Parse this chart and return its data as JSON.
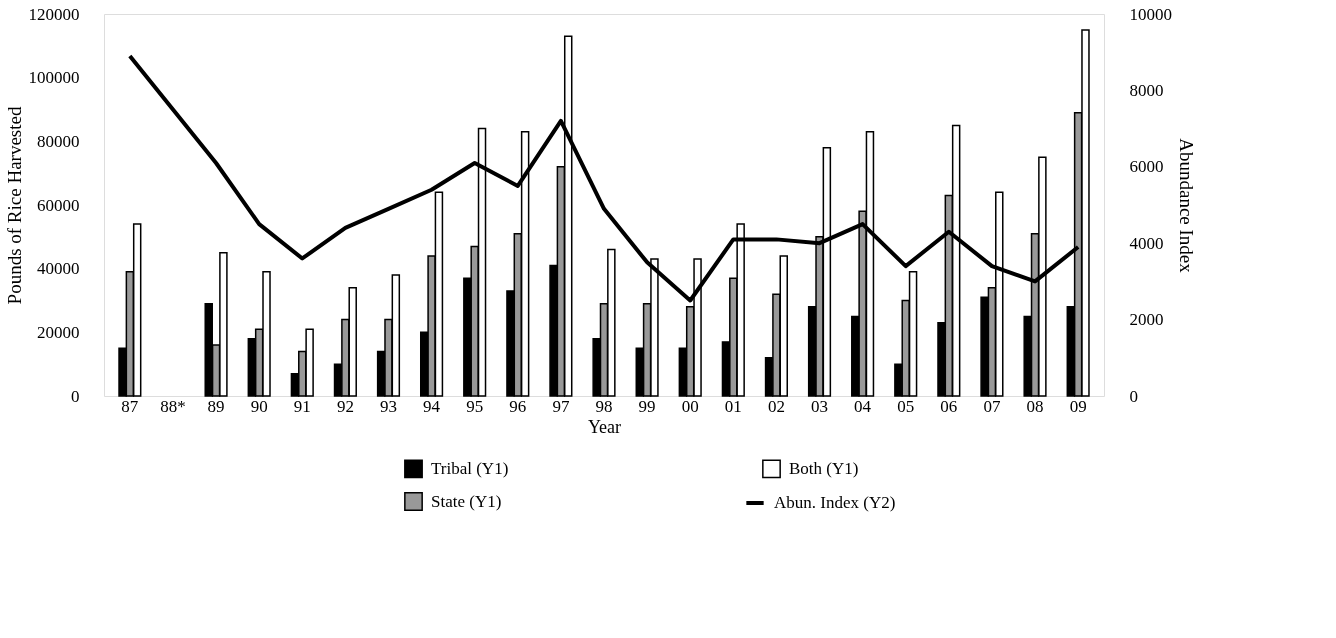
{
  "chart_data": {
    "type": "bar",
    "xlabel": "Year",
    "ylabel": "Pounds of Rice Harvested",
    "y2label": "Abundance Index",
    "categories": [
      "87",
      "88*",
      "89",
      "90",
      "91",
      "92",
      "93",
      "94",
      "95",
      "96",
      "97",
      "98",
      "99",
      "00",
      "01",
      "02",
      "03",
      "04",
      "05",
      "06",
      "07",
      "08",
      "09"
    ],
    "series": [
      {
        "name": "Tribal (Y1)",
        "color": "#000000",
        "values": [
          15000,
          null,
          29000,
          18000,
          7000,
          10000,
          14000,
          20000,
          37000,
          33000,
          41000,
          18000,
          15000,
          15000,
          17000,
          12000,
          28000,
          25000,
          10000,
          23000,
          31000,
          25000,
          28000
        ]
      },
      {
        "name": "State (Y1)",
        "color": "#999999",
        "values": [
          39000,
          null,
          16000,
          21000,
          14000,
          24000,
          24000,
          44000,
          47000,
          51000,
          72000,
          29000,
          29000,
          28000,
          37000,
          32000,
          50000,
          58000,
          30000,
          63000,
          34000,
          51000,
          89000
        ]
      },
      {
        "name": "Both (Y1)",
        "color": "#ffffff",
        "values": [
          54000,
          null,
          45000,
          39000,
          21000,
          34000,
          38000,
          64000,
          84000,
          83000,
          113000,
          46000,
          43000,
          43000,
          54000,
          44000,
          78000,
          83000,
          39000,
          85000,
          64000,
          75000,
          115000
        ]
      },
      {
        "name": "Abun. Index (Y2)",
        "color": "#000000",
        "type": "line",
        "axis": "y2",
        "values": [
          8900,
          7500,
          6100,
          4500,
          3600,
          4400,
          4900,
          5400,
          6100,
          5500,
          7200,
          4900,
          3500,
          2500,
          4100,
          4100,
          4000,
          4500,
          3400,
          4300,
          3400,
          3000,
          3900
        ]
      }
    ],
    "ylim": [
      0,
      120000
    ],
    "yticks": [
      0,
      20000,
      40000,
      60000,
      80000,
      100000,
      120000
    ],
    "y2lim": [
      0,
      10000
    ],
    "y2ticks": [
      0,
      2000,
      4000,
      6000,
      8000,
      10000
    ],
    "grid": false,
    "legend": "bottom"
  }
}
